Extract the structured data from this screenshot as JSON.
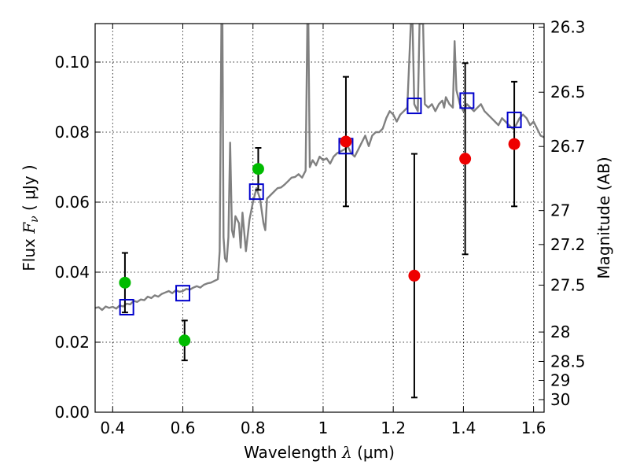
{
  "chart_data": {
    "type": "scatter",
    "xlabel": "Wavelength",
    "xlabel_symbol": "λ",
    "xlabel_unit": "(μm)",
    "ylabel": "Flux",
    "ylabel_symbol": "F",
    "ylabel_subscript": "ν",
    "ylabel_unit": "( μJy )",
    "y2label": "Magnitude (AB)",
    "xlim": [
      0.35,
      1.63
    ],
    "ylim": [
      0.0,
      0.111
    ],
    "grid": true,
    "x_ticks": [
      0.4,
      0.6,
      0.8,
      1.0,
      1.2,
      1.4,
      1.6
    ],
    "x_tick_labels": [
      "0.4",
      "0.6",
      "0.8",
      "1",
      "1.2",
      "1.4",
      "1.6"
    ],
    "y_ticks": [
      0.0,
      0.02,
      0.04,
      0.06,
      0.08,
      0.1
    ],
    "y_tick_labels": [
      "0.00",
      "0.02",
      "0.04",
      "0.06",
      "0.08",
      "0.10"
    ],
    "y2_ticks": [
      {
        "label": "26.3",
        "flux": 0.11
      },
      {
        "label": "26.5",
        "flux": 0.0914
      },
      {
        "label": "26.7",
        "flux": 0.0759
      },
      {
        "label": "27",
        "flux": 0.0576
      },
      {
        "label": "27.2",
        "flux": 0.0479
      },
      {
        "label": "27.5",
        "flux": 0.0363
      },
      {
        "label": "28",
        "flux": 0.0229
      },
      {
        "label": "28.5",
        "flux": 0.0145
      },
      {
        "label": "29",
        "flux": 0.0091
      },
      {
        "label": "30",
        "flux": 0.0036
      }
    ],
    "model_color": "#808080",
    "model_spectrum": [
      [
        0.35,
        0.0298
      ],
      [
        0.36,
        0.03
      ],
      [
        0.37,
        0.0292
      ],
      [
        0.38,
        0.0302
      ],
      [
        0.39,
        0.0298
      ],
      [
        0.4,
        0.0301
      ],
      [
        0.41,
        0.0296
      ],
      [
        0.42,
        0.0305
      ],
      [
        0.43,
        0.0302
      ],
      [
        0.44,
        0.031
      ],
      [
        0.45,
        0.0308
      ],
      [
        0.46,
        0.0318
      ],
      [
        0.47,
        0.0315
      ],
      [
        0.48,
        0.0322
      ],
      [
        0.49,
        0.032
      ],
      [
        0.5,
        0.033
      ],
      [
        0.51,
        0.0326
      ],
      [
        0.52,
        0.0334
      ],
      [
        0.53,
        0.033
      ],
      [
        0.54,
        0.0338
      ],
      [
        0.55,
        0.0342
      ],
      [
        0.56,
        0.0346
      ],
      [
        0.57,
        0.034
      ],
      [
        0.58,
        0.0348
      ],
      [
        0.59,
        0.0344
      ],
      [
        0.6,
        0.0346
      ],
      [
        0.61,
        0.0352
      ],
      [
        0.62,
        0.035
      ],
      [
        0.63,
        0.0356
      ],
      [
        0.64,
        0.036
      ],
      [
        0.65,
        0.0356
      ],
      [
        0.66,
        0.0364
      ],
      [
        0.67,
        0.0368
      ],
      [
        0.68,
        0.037
      ],
      [
        0.69,
        0.0375
      ],
      [
        0.7,
        0.038
      ],
      [
        0.705,
        0.046
      ],
      [
        0.71,
        0.111
      ],
      [
        0.713,
        0.111
      ],
      [
        0.716,
        0.05
      ],
      [
        0.72,
        0.044
      ],
      [
        0.725,
        0.043
      ],
      [
        0.73,
        0.05
      ],
      [
        0.735,
        0.077
      ],
      [
        0.74,
        0.052
      ],
      [
        0.745,
        0.05
      ],
      [
        0.75,
        0.056
      ],
      [
        0.76,
        0.054
      ],
      [
        0.765,
        0.047
      ],
      [
        0.77,
        0.057
      ],
      [
        0.78,
        0.046
      ],
      [
        0.79,
        0.055
      ],
      [
        0.8,
        0.06
      ],
      [
        0.81,
        0.064
      ],
      [
        0.82,
        0.061
      ],
      [
        0.83,
        0.054
      ],
      [
        0.835,
        0.052
      ],
      [
        0.84,
        0.061
      ],
      [
        0.85,
        0.062
      ],
      [
        0.86,
        0.063
      ],
      [
        0.87,
        0.064
      ],
      [
        0.88,
        0.0642
      ],
      [
        0.89,
        0.065
      ],
      [
        0.9,
        0.066
      ],
      [
        0.91,
        0.067
      ],
      [
        0.92,
        0.0672
      ],
      [
        0.93,
        0.068
      ],
      [
        0.94,
        0.067
      ],
      [
        0.95,
        0.069
      ],
      [
        0.955,
        0.111
      ],
      [
        0.958,
        0.111
      ],
      [
        0.962,
        0.07
      ],
      [
        0.97,
        0.072
      ],
      [
        0.98,
        0.0705
      ],
      [
        0.99,
        0.073
      ],
      [
        1.0,
        0.072
      ],
      [
        1.01,
        0.0725
      ],
      [
        1.02,
        0.071
      ],
      [
        1.03,
        0.073
      ],
      [
        1.04,
        0.074
      ],
      [
        1.05,
        0.0745
      ],
      [
        1.06,
        0.075
      ],
      [
        1.07,
        0.076
      ],
      [
        1.08,
        0.074
      ],
      [
        1.09,
        0.073
      ],
      [
        1.1,
        0.075
      ],
      [
        1.11,
        0.077
      ],
      [
        1.12,
        0.079
      ],
      [
        1.13,
        0.076
      ],
      [
        1.14,
        0.079
      ],
      [
        1.15,
        0.08
      ],
      [
        1.16,
        0.08
      ],
      [
        1.17,
        0.081
      ],
      [
        1.18,
        0.084
      ],
      [
        1.19,
        0.086
      ],
      [
        1.2,
        0.085
      ],
      [
        1.21,
        0.083
      ],
      [
        1.22,
        0.085
      ],
      [
        1.23,
        0.086
      ],
      [
        1.24,
        0.087
      ],
      [
        1.25,
        0.111
      ],
      [
        1.255,
        0.111
      ],
      [
        1.26,
        0.088
      ],
      [
        1.27,
        0.086
      ],
      [
        1.275,
        0.111
      ],
      [
        1.285,
        0.111
      ],
      [
        1.29,
        0.088
      ],
      [
        1.3,
        0.087
      ],
      [
        1.31,
        0.088
      ],
      [
        1.32,
        0.086
      ],
      [
        1.33,
        0.088
      ],
      [
        1.34,
        0.089
      ],
      [
        1.345,
        0.087
      ],
      [
        1.35,
        0.09
      ],
      [
        1.36,
        0.088
      ],
      [
        1.37,
        0.087
      ],
      [
        1.375,
        0.106
      ],
      [
        1.38,
        0.092
      ],
      [
        1.39,
        0.088
      ],
      [
        1.4,
        0.086
      ],
      [
        1.41,
        0.088
      ],
      [
        1.42,
        0.087
      ],
      [
        1.43,
        0.086
      ],
      [
        1.44,
        0.087
      ],
      [
        1.45,
        0.088
      ],
      [
        1.46,
        0.086
      ],
      [
        1.47,
        0.085
      ],
      [
        1.48,
        0.084
      ],
      [
        1.49,
        0.083
      ],
      [
        1.5,
        0.082
      ],
      [
        1.51,
        0.084
      ],
      [
        1.52,
        0.083
      ],
      [
        1.53,
        0.082
      ],
      [
        1.54,
        0.081
      ],
      [
        1.55,
        0.082
      ],
      [
        1.56,
        0.084
      ],
      [
        1.57,
        0.085
      ],
      [
        1.58,
        0.084
      ],
      [
        1.59,
        0.082
      ],
      [
        1.6,
        0.083
      ],
      [
        1.61,
        0.081
      ],
      [
        1.62,
        0.079
      ],
      [
        1.63,
        0.0785
      ]
    ],
    "model_points": {
      "color": "#0000cc",
      "points": [
        {
          "x": 0.44,
          "y": 0.03
        },
        {
          "x": 0.6,
          "y": 0.034
        },
        {
          "x": 0.81,
          "y": 0.063
        },
        {
          "x": 1.065,
          "y": 0.076
        },
        {
          "x": 1.26,
          "y": 0.0875
        },
        {
          "x": 1.41,
          "y": 0.089
        },
        {
          "x": 1.545,
          "y": 0.0835
        }
      ]
    },
    "observed_ground": {
      "color": "#00bb00",
      "points": [
        {
          "x": 0.435,
          "y": 0.037,
          "err": 0.0085
        },
        {
          "x": 0.605,
          "y": 0.0205,
          "err": 0.0057
        },
        {
          "x": 0.815,
          "y": 0.0695,
          "err": 0.006
        }
      ]
    },
    "observed_hst": {
      "color": "#ee0000",
      "points": [
        {
          "x": 1.065,
          "y": 0.0773,
          "err": 0.0185
        },
        {
          "x": 1.26,
          "y": 0.039,
          "err": 0.0348
        },
        {
          "x": 1.405,
          "y": 0.0724,
          "err": 0.0273
        },
        {
          "x": 1.545,
          "y": 0.0766,
          "err": 0.0178
        }
      ]
    }
  }
}
